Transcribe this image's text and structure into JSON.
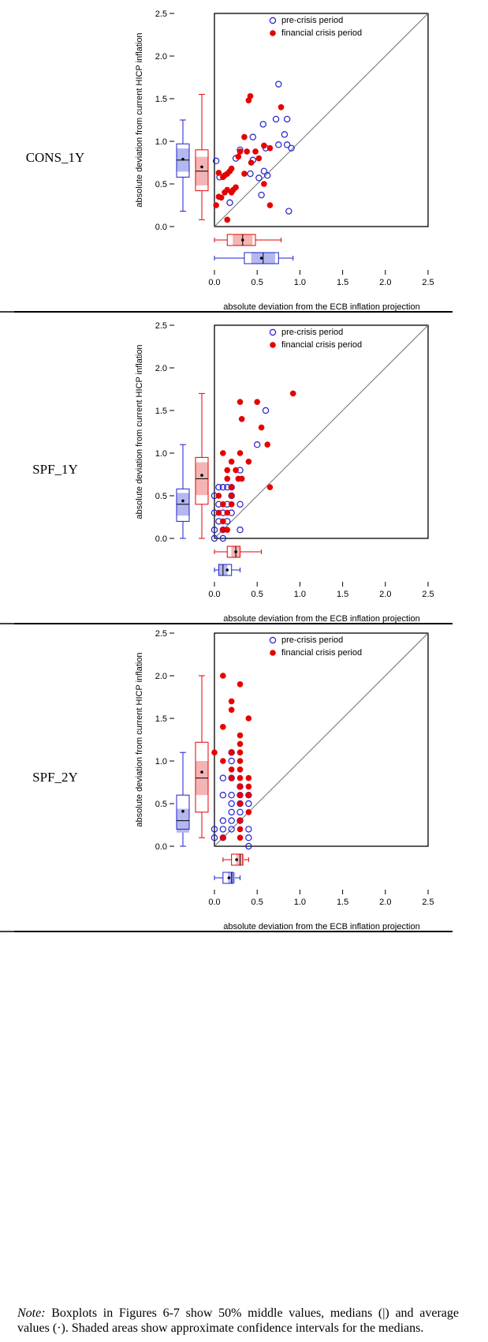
{
  "legend": {
    "pre": "pre-crisis period",
    "crisis": "financial crisis period"
  },
  "colors": {
    "pre": "#1f1fd0",
    "crisis": "#e60000",
    "pre_fill": "#b4b8f0",
    "crisis_fill": "#f5b4b4"
  },
  "axis_labels": {
    "x": "absolute deviation from the ECB inflation projection",
    "y": "absolute deviation from current HICP inflation"
  },
  "note": {
    "prefix": "Note:",
    "text": " Boxplots in Figures 6-7 show 50% middle values, medians (|) and average values (·). Shaded areas show approximate confidence intervals for the medians."
  },
  "chart_data": [
    {
      "type": "scatter",
      "row_label": "CONS_1Y",
      "xlabel": "absolute deviation from the ECB inflation projection",
      "ylabel": "absolute deviation from current HICP inflation",
      "xlim": [
        0,
        2.5
      ],
      "ylim": [
        0,
        2.5
      ],
      "xticks": [
        "0.0",
        "0.5",
        "1.0",
        "1.5",
        "2.0",
        "2.5"
      ],
      "yticks": [
        "0.0",
        "0.5",
        "1.0",
        "1.5",
        "2.0",
        "2.5"
      ],
      "diagonal": true,
      "legend": [
        "pre-crisis period",
        "financial crisis period"
      ],
      "series": [
        {
          "name": "pre-crisis period",
          "marker": "open-circle",
          "points": [
            [
              0.75,
              1.67
            ],
            [
              0.72,
              1.26
            ],
            [
              0.85,
              1.26
            ],
            [
              0.82,
              1.08
            ],
            [
              0.45,
              1.05
            ],
            [
              0.57,
              1.2
            ],
            [
              0.75,
              0.96
            ],
            [
              0.85,
              0.96
            ],
            [
              0.9,
              0.92
            ],
            [
              0.3,
              0.9
            ],
            [
              0.45,
              0.78
            ],
            [
              0.25,
              0.8
            ],
            [
              0.42,
              0.62
            ],
            [
              0.62,
              0.6
            ],
            [
              0.58,
              0.65
            ],
            [
              0.52,
              0.57
            ],
            [
              0.06,
              0.58
            ],
            [
              0.02,
              0.77
            ],
            [
              0.55,
              0.37
            ],
            [
              0.18,
              0.28
            ],
            [
              0.87,
              0.18
            ],
            [
              0.6,
              0.92
            ]
          ],
          "box_x": {
            "whisker_low": 0.0,
            "q1": 0.35,
            "median": 0.57,
            "mean": 0.55,
            "q3": 0.75,
            "whisker_high": 0.92
          },
          "box_y": {
            "whisker_low": 0.18,
            "q1": 0.58,
            "median": 0.78,
            "mean": 0.79,
            "q3": 0.97,
            "whisker_high": 1.25
          }
        },
        {
          "name": "financial crisis period",
          "marker": "filled-circle",
          "points": [
            [
              0.42,
              1.53
            ],
            [
              0.4,
              1.48
            ],
            [
              0.78,
              1.4
            ],
            [
              0.35,
              1.05
            ],
            [
              0.3,
              0.88
            ],
            [
              0.38,
              0.88
            ],
            [
              0.48,
              0.88
            ],
            [
              0.58,
              0.95
            ],
            [
              0.65,
              0.92
            ],
            [
              0.52,
              0.8
            ],
            [
              0.43,
              0.75
            ],
            [
              0.2,
              0.68
            ],
            [
              0.15,
              0.62
            ],
            [
              0.18,
              0.65
            ],
            [
              0.12,
              0.6
            ],
            [
              0.35,
              0.62
            ],
            [
              0.05,
              0.63
            ],
            [
              0.1,
              0.58
            ],
            [
              0.58,
              0.5
            ],
            [
              0.25,
              0.46
            ],
            [
              0.22,
              0.43
            ],
            [
              0.15,
              0.43
            ],
            [
              0.2,
              0.4
            ],
            [
              0.12,
              0.4
            ],
            [
              0.05,
              0.35
            ],
            [
              0.08,
              0.34
            ],
            [
              0.02,
              0.25
            ],
            [
              0.65,
              0.25
            ],
            [
              0.15,
              0.08
            ],
            [
              0.28,
              0.82
            ]
          ],
          "box_x": {
            "whisker_low": 0.0,
            "q1": 0.15,
            "median": 0.33,
            "mean": 0.33,
            "q3": 0.48,
            "whisker_high": 0.78
          },
          "box_y": {
            "whisker_low": 0.08,
            "q1": 0.42,
            "median": 0.65,
            "mean": 0.7,
            "q3": 0.9,
            "whisker_high": 1.55
          }
        }
      ]
    },
    {
      "type": "scatter",
      "row_label": "SPF_1Y",
      "xlabel": "absolute deviation from the ECB inflation projection",
      "ylabel": "absolute deviation from current HICP inflation",
      "xlim": [
        0,
        2.5
      ],
      "ylim": [
        0,
        2.5
      ],
      "xticks": [
        "0.0",
        "0.5",
        "1.0",
        "1.5",
        "2.0",
        "2.5"
      ],
      "yticks": [
        "0.0",
        "0.5",
        "1.0",
        "1.5",
        "2.0",
        "2.5"
      ],
      "diagonal": true,
      "legend": [
        "pre-crisis period",
        "financial crisis period"
      ],
      "series": [
        {
          "name": "pre-crisis period",
          "marker": "open-circle",
          "points": [
            [
              0.6,
              1.5
            ],
            [
              0.5,
              1.1
            ],
            [
              0.3,
              0.8
            ],
            [
              0.05,
              0.6
            ],
            [
              0.1,
              0.6
            ],
            [
              0.15,
              0.6
            ],
            [
              0.2,
              0.6
            ],
            [
              0.0,
              0.5
            ],
            [
              0.2,
              0.5
            ],
            [
              0.05,
              0.4
            ],
            [
              0.15,
              0.4
            ],
            [
              0.3,
              0.4
            ],
            [
              0.0,
              0.3
            ],
            [
              0.1,
              0.3
            ],
            [
              0.2,
              0.3
            ],
            [
              0.05,
              0.2
            ],
            [
              0.15,
              0.2
            ],
            [
              0.0,
              0.1
            ],
            [
              0.1,
              0.1
            ],
            [
              0.3,
              0.1
            ],
            [
              0.0,
              0.0
            ],
            [
              0.1,
              0.0
            ]
          ],
          "box_x": {
            "whisker_low": 0.0,
            "q1": 0.05,
            "median": 0.1,
            "mean": 0.15,
            "q3": 0.2,
            "whisker_high": 0.3
          },
          "box_y": {
            "whisker_low": 0.0,
            "q1": 0.2,
            "median": 0.4,
            "mean": 0.44,
            "q3": 0.58,
            "whisker_high": 1.1
          }
        },
        {
          "name": "financial crisis period",
          "marker": "filled-circle",
          "points": [
            [
              0.92,
              1.7
            ],
            [
              0.3,
              1.6
            ],
            [
              0.5,
              1.6
            ],
            [
              0.32,
              1.4
            ],
            [
              0.55,
              1.3
            ],
            [
              0.62,
              1.1
            ],
            [
              0.1,
              1.0
            ],
            [
              0.3,
              1.0
            ],
            [
              0.2,
              0.9
            ],
            [
              0.4,
              0.9
            ],
            [
              0.15,
              0.8
            ],
            [
              0.25,
              0.8
            ],
            [
              0.15,
              0.7
            ],
            [
              0.28,
              0.7
            ],
            [
              0.32,
              0.7
            ],
            [
              0.2,
              0.6
            ],
            [
              0.65,
              0.6
            ],
            [
              0.05,
              0.5
            ],
            [
              0.2,
              0.5
            ],
            [
              0.1,
              0.4
            ],
            [
              0.2,
              0.4
            ],
            [
              0.05,
              0.3
            ],
            [
              0.15,
              0.3
            ],
            [
              0.1,
              0.2
            ],
            [
              0.1,
              0.1
            ],
            [
              0.15,
              0.1
            ],
            [
              0.2,
              0.4
            ]
          ],
          "box_x": {
            "whisker_low": 0.0,
            "q1": 0.15,
            "median": 0.25,
            "mean": 0.25,
            "q3": 0.3,
            "whisker_high": 0.55
          },
          "box_y": {
            "whisker_low": 0.0,
            "q1": 0.4,
            "median": 0.7,
            "mean": 0.74,
            "q3": 0.95,
            "whisker_high": 1.7
          }
        }
      ]
    },
    {
      "type": "scatter",
      "row_label": "SPF_2Y",
      "xlabel": "absolute deviation from the ECB inflation projection",
      "ylabel": "absolute deviation from current HICP inflation",
      "xlim": [
        0,
        2.5
      ],
      "ylim": [
        0,
        2.5
      ],
      "xticks": [
        "0.0",
        "0.5",
        "1.0",
        "1.5",
        "2.0",
        "2.5"
      ],
      "yticks": [
        "0.0",
        "0.5",
        "1.0",
        "1.5",
        "2.0",
        "2.5"
      ],
      "diagonal": true,
      "legend": [
        "pre-crisis period",
        "financial crisis period"
      ],
      "series": [
        {
          "name": "pre-crisis period",
          "marker": "open-circle",
          "points": [
            [
              0.2,
              1.1
            ],
            [
              0.2,
              1.0
            ],
            [
              0.1,
              0.8
            ],
            [
              0.2,
              0.8
            ],
            [
              0.3,
              0.7
            ],
            [
              0.1,
              0.6
            ],
            [
              0.2,
              0.6
            ],
            [
              0.3,
              0.6
            ],
            [
              0.4,
              0.6
            ],
            [
              0.2,
              0.5
            ],
            [
              0.3,
              0.5
            ],
            [
              0.4,
              0.5
            ],
            [
              0.2,
              0.4
            ],
            [
              0.3,
              0.4
            ],
            [
              0.1,
              0.3
            ],
            [
              0.2,
              0.3
            ],
            [
              0.3,
              0.3
            ],
            [
              0.0,
              0.2
            ],
            [
              0.1,
              0.2
            ],
            [
              0.2,
              0.2
            ],
            [
              0.4,
              0.2
            ],
            [
              0.0,
              0.1
            ],
            [
              0.1,
              0.1
            ],
            [
              0.4,
              0.1
            ],
            [
              0.4,
              0.0
            ]
          ],
          "box_x": {
            "whisker_low": 0.0,
            "q1": 0.1,
            "median": 0.2,
            "mean": 0.17,
            "q3": 0.22,
            "whisker_high": 0.3
          },
          "box_y": {
            "whisker_low": 0.0,
            "q1": 0.2,
            "median": 0.3,
            "mean": 0.41,
            "q3": 0.6,
            "whisker_high": 1.1
          }
        },
        {
          "name": "financial crisis period",
          "marker": "filled-circle",
          "points": [
            [
              0.1,
              2.0
            ],
            [
              0.3,
              1.9
            ],
            [
              0.2,
              1.7
            ],
            [
              0.2,
              1.6
            ],
            [
              0.4,
              1.5
            ],
            [
              0.1,
              1.4
            ],
            [
              0.3,
              1.3
            ],
            [
              0.3,
              1.2
            ],
            [
              0.2,
              1.1
            ],
            [
              0.3,
              1.1
            ],
            [
              0.0,
              1.1
            ],
            [
              0.1,
              1.0
            ],
            [
              0.3,
              1.0
            ],
            [
              0.2,
              0.9
            ],
            [
              0.3,
              0.9
            ],
            [
              0.2,
              0.8
            ],
            [
              0.3,
              0.8
            ],
            [
              0.4,
              0.8
            ],
            [
              0.3,
              0.7
            ],
            [
              0.4,
              0.7
            ],
            [
              0.3,
              0.6
            ],
            [
              0.4,
              0.6
            ],
            [
              0.3,
              0.5
            ],
            [
              0.4,
              0.4
            ],
            [
              0.3,
              0.3
            ],
            [
              0.3,
              0.2
            ],
            [
              0.3,
              0.1
            ],
            [
              0.1,
              0.1
            ]
          ],
          "box_x": {
            "whisker_low": 0.1,
            "q1": 0.2,
            "median": 0.3,
            "mean": 0.26,
            "q3": 0.33,
            "whisker_high": 0.4
          },
          "box_y": {
            "whisker_low": 0.1,
            "q1": 0.4,
            "median": 0.8,
            "mean": 0.87,
            "q3": 1.22,
            "whisker_high": 2.0
          }
        }
      ]
    }
  ]
}
